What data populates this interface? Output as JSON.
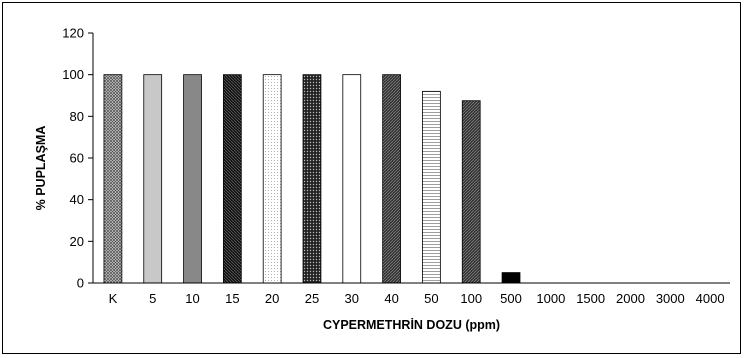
{
  "chart_data": {
    "type": "bar",
    "title": "",
    "xlabel": "CYPERMETHRİN DOZU (ppm)",
    "ylabel": "% PUPLAŞMA",
    "ylim": [
      0,
      120
    ],
    "yticks": [
      0,
      20,
      40,
      60,
      80,
      100,
      120
    ],
    "grid": false,
    "legend": "none",
    "categories": [
      "K",
      "5",
      "10",
      "15",
      "20",
      "25",
      "30",
      "40",
      "50",
      "100",
      "500",
      "1000",
      "1500",
      "2000",
      "3000",
      "4000"
    ],
    "values": [
      100,
      100,
      100,
      100,
      100,
      100,
      100,
      100,
      92,
      87.5,
      5,
      0,
      0,
      0,
      0,
      0
    ],
    "bar_fills": [
      "cross-hatch",
      "light-gray",
      "mid-gray",
      "black-hatch",
      "light-dots",
      "dark-dots",
      "white",
      "dark-hatch",
      "light-stripes",
      "dark-hatch",
      "black",
      "none",
      "none",
      "none",
      "none",
      "none"
    ]
  }
}
